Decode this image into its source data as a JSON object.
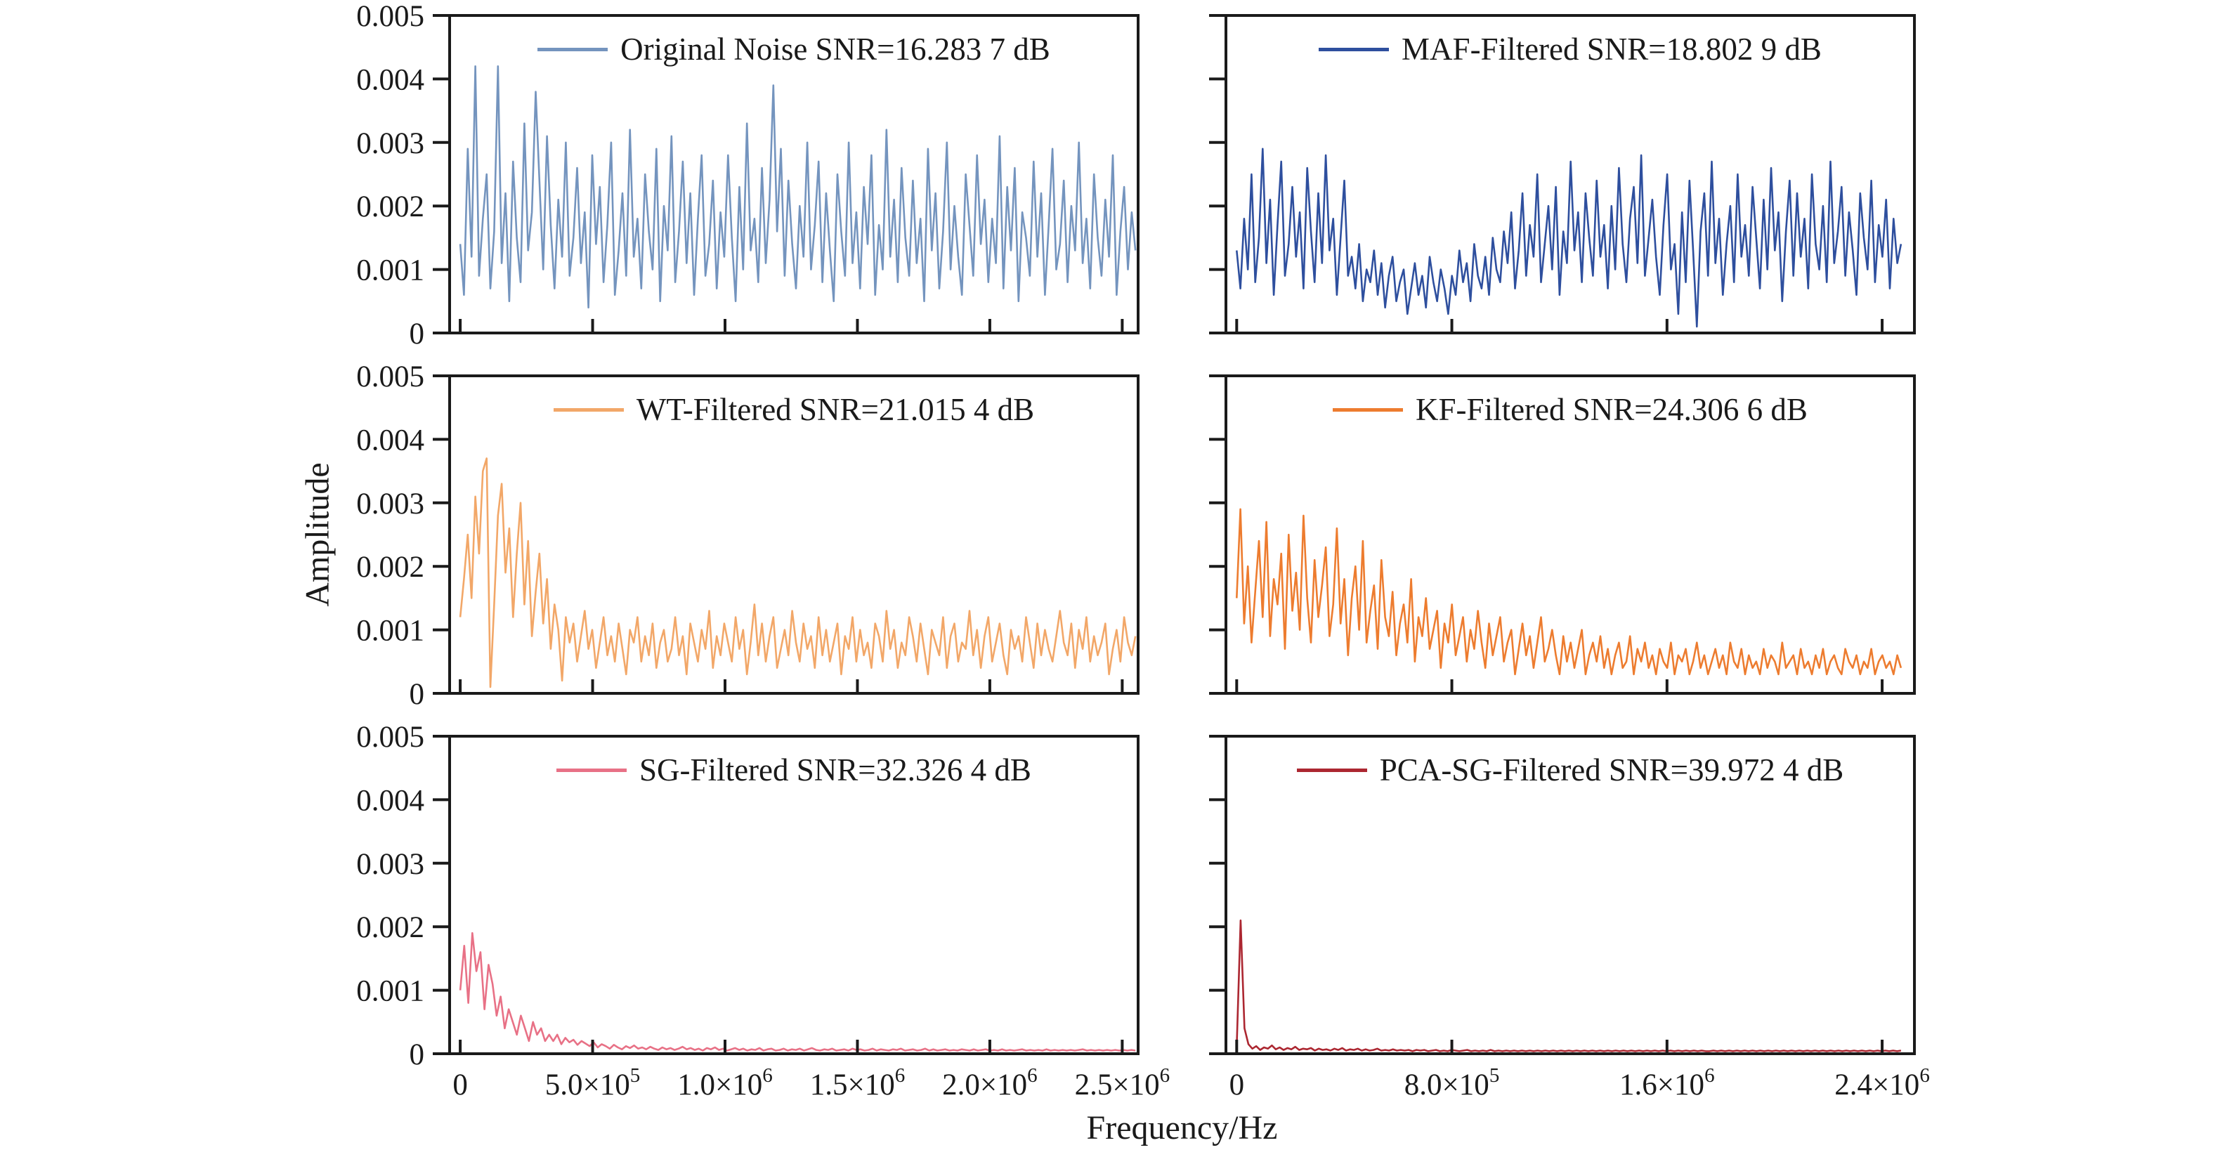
{
  "chart_data": {
    "type": "line",
    "xlabel": "Frequency/Hz",
    "ylabel": "Amplitude",
    "ylim": [
      0,
      0.005
    ],
    "grid": false,
    "legend_position": "inside-top-center",
    "amplitude_unit": 0.0001,
    "y_ticks": [
      {
        "v": 0.005,
        "t": "0.005"
      },
      {
        "v": 0.004,
        "t": "0.004"
      },
      {
        "v": 0.003,
        "t": "0.003"
      },
      {
        "v": 0.002,
        "t": "0.002"
      },
      {
        "v": 0.001,
        "t": "0.001"
      },
      {
        "v": 0,
        "t": "0"
      }
    ],
    "x_axis_left": {
      "xmin": -40000,
      "xmax": 2560000,
      "data_end": 2550000,
      "ticks": [
        {
          "v": 0,
          "t": "0"
        },
        {
          "v": 500000,
          "t": "5.0×10",
          "sup": "5"
        },
        {
          "v": 1000000,
          "t": "1.0×10",
          "sup": "6"
        },
        {
          "v": 1500000,
          "t": "1.5×10",
          "sup": "6"
        },
        {
          "v": 2000000,
          "t": "2.0×10",
          "sup": "6"
        },
        {
          "v": 2500000,
          "t": "2.5×10",
          "sup": "6"
        }
      ]
    },
    "x_axis_right": {
      "xmin": -40000,
      "xmax": 2520000,
      "data_end": 2470000,
      "ticks": [
        {
          "v": 0,
          "t": "0"
        },
        {
          "v": 800000,
          "t": "8.0×10",
          "sup": "5"
        },
        {
          "v": 1600000,
          "t": "1.6×10",
          "sup": "6"
        },
        {
          "v": 2400000,
          "t": "2.4×10",
          "sup": "6"
        }
      ]
    },
    "panels": [
      {
        "id": "original-noise",
        "legend": "Original Noise SNR=16.283 7 dB",
        "color": "#7494BE",
        "row": 0,
        "col": 0,
        "x_axis": "left",
        "show_y_labels": true,
        "show_x_labels": false,
        "values": [
          14,
          6,
          29,
          12,
          42,
          9,
          18,
          25,
          7,
          16,
          42,
          11,
          22,
          5,
          27,
          15,
          8,
          33,
          13,
          19,
          38,
          24,
          10,
          31,
          17,
          7,
          21,
          12,
          30,
          9,
          15,
          26,
          11,
          19,
          4,
          28,
          14,
          23,
          8,
          17,
          30,
          6,
          13,
          22,
          9,
          32,
          12,
          18,
          7,
          25,
          16,
          10,
          29,
          5,
          20,
          13,
          31,
          8,
          16,
          27,
          11,
          22,
          6,
          18,
          28,
          9,
          14,
          24,
          7,
          19,
          12,
          28,
          15,
          5,
          23,
          10,
          33,
          13,
          18,
          8,
          26,
          11,
          21,
          39,
          16,
          29,
          9,
          24,
          14,
          7,
          20,
          12,
          30,
          10,
          17,
          27,
          8,
          22,
          13,
          5,
          25,
          16,
          9,
          30,
          11,
          19,
          7,
          23,
          14,
          28,
          6,
          17,
          10,
          32,
          12,
          21,
          8,
          26,
          15,
          9,
          24,
          11,
          18,
          5,
          29,
          13,
          22,
          7,
          16,
          30,
          10,
          20,
          12,
          6,
          25,
          17,
          9,
          28,
          14,
          21,
          8,
          18,
          11,
          31,
          7,
          23,
          13,
          26,
          5,
          19,
          15,
          9,
          27,
          12,
          22,
          6,
          17,
          29,
          10,
          14,
          24,
          8,
          20,
          13,
          30,
          11,
          18,
          7,
          25,
          15,
          9,
          21,
          12,
          28,
          6,
          16,
          23,
          10,
          19,
          13
        ]
      },
      {
        "id": "maf-filtered",
        "legend": "MAF-Filtered SNR=18.802 9 dB",
        "color": "#2E4F9E",
        "row": 0,
        "col": 1,
        "x_axis": "right",
        "show_y_labels": false,
        "show_x_labels": false,
        "values": [
          13,
          7,
          18,
          10,
          25,
          8,
          15,
          29,
          11,
          21,
          6,
          17,
          27,
          9,
          14,
          23,
          12,
          19,
          7,
          26,
          16,
          8,
          22,
          11,
          28,
          13,
          18,
          6,
          15,
          24,
          9,
          12,
          7,
          14,
          5,
          10,
          8,
          13,
          6,
          11,
          4,
          9,
          12,
          5,
          8,
          10,
          3,
          7,
          11,
          6,
          9,
          4,
          12,
          8,
          5,
          10,
          7,
          3,
          9,
          6,
          13,
          8,
          11,
          5,
          14,
          9,
          7,
          12,
          6,
          15,
          10,
          8,
          16,
          11,
          19,
          7,
          13,
          22,
          9,
          17,
          12,
          25,
          8,
          14,
          20,
          10,
          23,
          6,
          16,
          11,
          27,
          13,
          19,
          8,
          22,
          15,
          9,
          24,
          12,
          17,
          7,
          20,
          10,
          26,
          14,
          8,
          18,
          23,
          11,
          28,
          9,
          15,
          21,
          12,
          6,
          17,
          25,
          10,
          14,
          3,
          19,
          8,
          24,
          13,
          1,
          16,
          22,
          9,
          27,
          11,
          18,
          6,
          14,
          20,
          8,
          25,
          12,
          17,
          9,
          23,
          15,
          7,
          21,
          10,
          26,
          13,
          19,
          5,
          16,
          24,
          9,
          22,
          12,
          18,
          7,
          25,
          14,
          10,
          20,
          8,
          27,
          11,
          16,
          23,
          9,
          19,
          13,
          6,
          22,
          15,
          10,
          24,
          8,
          17,
          12,
          21,
          7,
          18,
          11,
          14
        ]
      },
      {
        "id": "wt-filtered",
        "legend": "WT-Filtered SNR=21.015 4 dB",
        "color": "#F2A768",
        "row": 1,
        "col": 0,
        "x_axis": "left",
        "show_y_labels": true,
        "show_x_labels": false,
        "values": [
          12,
          18,
          25,
          15,
          31,
          22,
          35,
          37,
          1,
          14,
          28,
          33,
          19,
          26,
          12,
          22,
          30,
          14,
          24,
          9,
          16,
          22,
          11,
          18,
          7,
          14,
          10,
          2,
          12,
          8,
          11,
          5,
          9,
          13,
          7,
          10,
          4,
          8,
          12,
          6,
          9,
          5,
          11,
          7,
          3,
          10,
          8,
          12,
          5,
          9,
          6,
          11,
          4,
          8,
          10,
          5,
          7,
          12,
          6,
          9,
          3,
          11,
          8,
          5,
          10,
          7,
          13,
          4,
          9,
          6,
          11,
          8,
          5,
          12,
          7,
          10,
          3,
          8,
          14,
          6,
          11,
          5,
          9,
          12,
          4,
          7,
          10,
          6,
          13,
          8,
          5,
          11,
          7,
          9,
          4,
          12,
          6,
          10,
          5,
          8,
          11,
          3,
          9,
          7,
          12,
          5,
          10,
          6,
          8,
          4,
          11,
          9,
          5,
          13,
          7,
          10,
          4,
          8,
          6,
          12,
          9,
          5,
          11,
          7,
          3,
          10,
          8,
          6,
          12,
          4,
          9,
          11,
          5,
          8,
          7,
          13,
          6,
          10,
          4,
          9,
          12,
          5,
          8,
          11,
          6,
          3,
          10,
          7,
          9,
          5,
          12,
          8,
          4,
          11,
          6,
          10,
          7,
          5,
          9,
          13,
          8,
          6,
          11,
          4,
          10,
          7,
          12,
          5,
          9,
          6,
          8,
          11,
          3,
          7,
          10,
          5,
          12,
          8,
          6,
          9
        ]
      },
      {
        "id": "kf-filtered",
        "legend": "KF-Filtered SNR=24.306 6 dB",
        "color": "#ED7C2F",
        "row": 1,
        "col": 1,
        "x_axis": "right",
        "show_y_labels": false,
        "show_x_labels": false,
        "values": [
          15,
          29,
          11,
          20,
          8,
          16,
          24,
          12,
          27,
          9,
          18,
          14,
          22,
          7,
          25,
          13,
          19,
          10,
          28,
          15,
          8,
          21,
          12,
          17,
          23,
          9,
          14,
          26,
          11,
          18,
          6,
          15,
          20,
          10,
          24,
          8,
          13,
          17,
          7,
          21,
          12,
          9,
          16,
          6,
          11,
          14,
          8,
          18,
          5,
          12,
          9,
          15,
          7,
          10,
          13,
          4,
          11,
          8,
          14,
          6,
          9,
          12,
          5,
          10,
          7,
          13,
          8,
          4,
          11,
          6,
          9,
          12,
          5,
          8,
          10,
          3,
          7,
          11,
          6,
          9,
          4,
          8,
          12,
          5,
          7,
          10,
          6,
          3,
          9,
          5,
          8,
          4,
          7,
          10,
          3,
          6,
          8,
          5,
          9,
          4,
          7,
          3,
          6,
          8,
          4,
          5,
          9,
          3,
          7,
          5,
          8,
          4,
          6,
          3,
          7,
          5,
          4,
          8,
          3,
          6,
          5,
          7,
          3,
          5,
          8,
          4,
          6,
          3,
          5,
          7,
          4,
          6,
          3,
          8,
          5,
          4,
          7,
          3,
          6,
          4,
          5,
          3,
          7,
          4,
          6,
          5,
          3,
          8,
          4,
          5,
          6,
          3,
          7,
          4,
          5,
          3,
          6,
          4,
          7,
          3,
          5,
          6,
          4,
          3,
          7,
          5,
          4,
          6,
          3,
          5,
          4,
          7,
          3,
          5,
          6,
          4,
          5,
          3,
          6,
          4
        ]
      },
      {
        "id": "sg-filtered",
        "legend": "SG-Filtered SNR=32.326 4 dB",
        "color": "#E87186",
        "row": 2,
        "col": 0,
        "x_axis": "left",
        "show_y_labels": true,
        "show_x_labels": true,
        "values": [
          10,
          17,
          8,
          19,
          13,
          16,
          7,
          14,
          11,
          6,
          9,
          4,
          7,
          5,
          3,
          6,
          4,
          2,
          5,
          3,
          4,
          2,
          3,
          2,
          3,
          1.5,
          2.5,
          1.8,
          2.2,
          1.4,
          2,
          1.6,
          1.2,
          1.8,
          1,
          1.5,
          1.2,
          0.8,
          1.4,
          1,
          0.7,
          1.2,
          0.9,
          1.3,
          0.8,
          1,
          0.7,
          1.1,
          0.8,
          0.6,
          1,
          0.7,
          0.9,
          0.6,
          0.8,
          1.1,
          0.7,
          0.9,
          0.6,
          0.8,
          0.5,
          0.9,
          0.7,
          1,
          0.6,
          0.8,
          0.5,
          0.7,
          0.9,
          0.6,
          0.8,
          0.5,
          0.7,
          0.6,
          0.9,
          0.5,
          0.7,
          0.8,
          0.5,
          0.6,
          0.8,
          0.5,
          0.7,
          0.6,
          0.8,
          0.5,
          0.7,
          0.9,
          0.6,
          0.5,
          0.7,
          0.6,
          0.8,
          0.5,
          0.6,
          0.7,
          0.5,
          0.8,
          0.6,
          0.7,
          0.5,
          0.6,
          0.8,
          0.5,
          0.7,
          0.6,
          0.5,
          0.7,
          0.6,
          0.8,
          0.5,
          0.6,
          0.7,
          0.5,
          0.6,
          0.8,
          0.5,
          0.7,
          0.5,
          0.6,
          0.7,
          0.5,
          0.6,
          0.5,
          0.7,
          0.6,
          0.5,
          0.7,
          0.5,
          0.6,
          0.7,
          0.5,
          0.6,
          0.5,
          0.7,
          0.5,
          0.6,
          0.5,
          0.6,
          0.7,
          0.5,
          0.6,
          0.5,
          0.6,
          0.5,
          0.7,
          0.5,
          0.6,
          0.5,
          0.6,
          0.5,
          0.6,
          0.5,
          0.6,
          0.7,
          0.5,
          0.6,
          0.5,
          0.6,
          0.5,
          0.6,
          0.5,
          0.6,
          0.5,
          0.6,
          0.5,
          0.6,
          0.5
        ]
      },
      {
        "id": "pca-sg-filtered",
        "legend": "PCA-SG-Filtered SNR=39.972 4 dB",
        "color": "#AC2731",
        "row": 2,
        "col": 1,
        "x_axis": "right",
        "show_y_labels": false,
        "show_x_labels": true,
        "values": [
          1,
          21,
          4,
          1.5,
          0.8,
          1.2,
          0.6,
          1,
          0.8,
          1.3,
          0.7,
          1,
          0.6,
          0.9,
          0.7,
          1.1,
          0.6,
          0.8,
          0.7,
          0.9,
          0.5,
          0.8,
          0.6,
          0.7,
          0.5,
          0.8,
          0.6,
          0.9,
          0.5,
          0.7,
          0.6,
          0.8,
          0.5,
          0.7,
          0.5,
          0.6,
          0.8,
          0.5,
          0.6,
          0.5,
          0.7,
          0.5,
          0.6,
          0.5,
          0.6,
          0.4,
          0.6,
          0.5,
          0.6,
          0.4,
          0.5,
          0.6,
          0.4,
          0.5,
          0.4,
          0.6,
          0.5,
          0.4,
          0.5,
          0.6,
          0.4,
          0.5,
          0.4,
          0.5,
          0.4,
          0.6,
          0.4,
          0.5,
          0.4,
          0.5,
          0.4,
          0.5,
          0.4,
          0.5,
          0.4,
          0.5,
          0.4,
          0.5,
          0.4,
          0.5,
          0.4,
          0.5,
          0.4,
          0.5,
          0.4,
          0.5,
          0.4,
          0.5,
          0.4,
          0.5,
          0.4,
          0.5,
          0.4,
          0.5,
          0.4,
          0.5,
          0.4,
          0.5,
          0.4,
          0.5,
          0.4,
          0.5,
          0.4,
          0.5,
          0.4,
          0.5,
          0.4,
          0.5,
          0.4,
          0.5,
          0.4,
          0.5,
          0.4,
          0.5,
          0.4,
          0.5,
          0.4,
          0.5,
          0.4,
          0.5,
          0.4,
          0.4,
          0.5,
          0.4,
          0.5,
          0.4,
          0.5,
          0.4,
          0.5,
          0.4,
          0.5,
          0.4,
          0.5,
          0.4,
          0.5,
          0.4,
          0.5,
          0.4,
          0.5,
          0.4,
          0.5,
          0.4,
          0.5,
          0.4,
          0.5,
          0.4,
          0.5,
          0.4,
          0.5,
          0.4,
          0.5,
          0.4,
          0.5,
          0.4,
          0.5,
          0.4,
          0.5,
          0.4,
          0.5,
          0.4,
          0.5,
          0.4,
          0.5,
          0.4,
          0.5,
          0.4,
          0.5,
          0.4,
          0.5,
          0.4,
          0.5
        ]
      }
    ]
  }
}
